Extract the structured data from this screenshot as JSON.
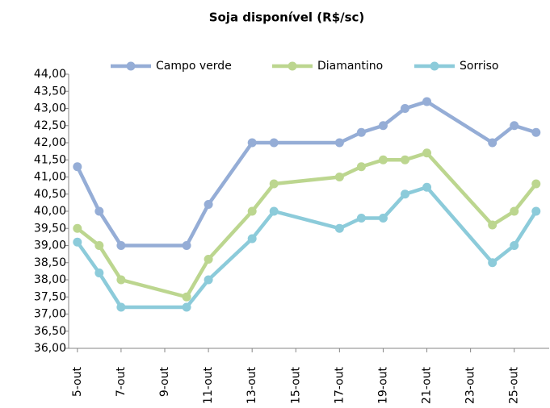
{
  "chart_data": {
    "type": "line",
    "title": "Soja disponível (R$/sc)",
    "x": [
      5,
      6,
      7,
      10,
      11,
      13,
      14,
      17,
      18,
      19,
      20,
      21,
      24,
      25,
      26
    ],
    "series": [
      {
        "name": "Campo verde",
        "color": "#95add6",
        "values": [
          41.3,
          40.0,
          39.0,
          39.0,
          40.2,
          42.0,
          42.0,
          42.0,
          42.3,
          42.5,
          43.0,
          43.2,
          42.0,
          42.5,
          42.3
        ]
      },
      {
        "name": "Diamantino",
        "color": "#bcd68f",
        "values": [
          39.5,
          39.0,
          38.0,
          37.5,
          38.6,
          40.0,
          40.8,
          41.0,
          41.3,
          41.5,
          41.5,
          41.7,
          39.6,
          40.0,
          40.8
        ]
      },
      {
        "name": "Sorriso",
        "color": "#8ccbda",
        "values": [
          39.1,
          38.2,
          37.2,
          37.2,
          38.0,
          39.2,
          40.0,
          39.5,
          39.8,
          39.8,
          40.5,
          40.7,
          38.5,
          39.0,
          40.0
        ]
      }
    ],
    "xlim": [
      4.6,
      26.6
    ],
    "xticks": [
      {
        "value": 5,
        "label": "5-out"
      },
      {
        "value": 7,
        "label": "7-out"
      },
      {
        "value": 9,
        "label": "9-out"
      },
      {
        "value": 11,
        "label": "11-out"
      },
      {
        "value": 13,
        "label": "13-out"
      },
      {
        "value": 15,
        "label": "15-out"
      },
      {
        "value": 17,
        "label": "17-out"
      },
      {
        "value": 19,
        "label": "19-out"
      },
      {
        "value": 21,
        "label": "21-out"
      },
      {
        "value": 23,
        "label": "23-out"
      },
      {
        "value": 25,
        "label": "25-out"
      }
    ],
    "ylim": [
      36,
      44
    ],
    "yticks": [
      {
        "value": 36,
        "label": "36,00"
      },
      {
        "value": 36.5,
        "label": "36,50"
      },
      {
        "value": 37,
        "label": "37,00"
      },
      {
        "value": 37.5,
        "label": "37,50"
      },
      {
        "value": 38,
        "label": "38,00"
      },
      {
        "value": 38.5,
        "label": "38,50"
      },
      {
        "value": 39,
        "label": "39,00"
      },
      {
        "value": 39.5,
        "label": "39,50"
      },
      {
        "value": 40,
        "label": "40,00"
      },
      {
        "value": 40.5,
        "label": "40,50"
      },
      {
        "value": 41,
        "label": "41,00"
      },
      {
        "value": 41.5,
        "label": "41,50"
      },
      {
        "value": 42,
        "label": "42,00"
      },
      {
        "value": 42.5,
        "label": "42,50"
      },
      {
        "value": 43,
        "label": "43,00"
      },
      {
        "value": 43.5,
        "label": "43,50"
      },
      {
        "value": 44,
        "label": "44,00"
      }
    ],
    "legend": "top"
  }
}
